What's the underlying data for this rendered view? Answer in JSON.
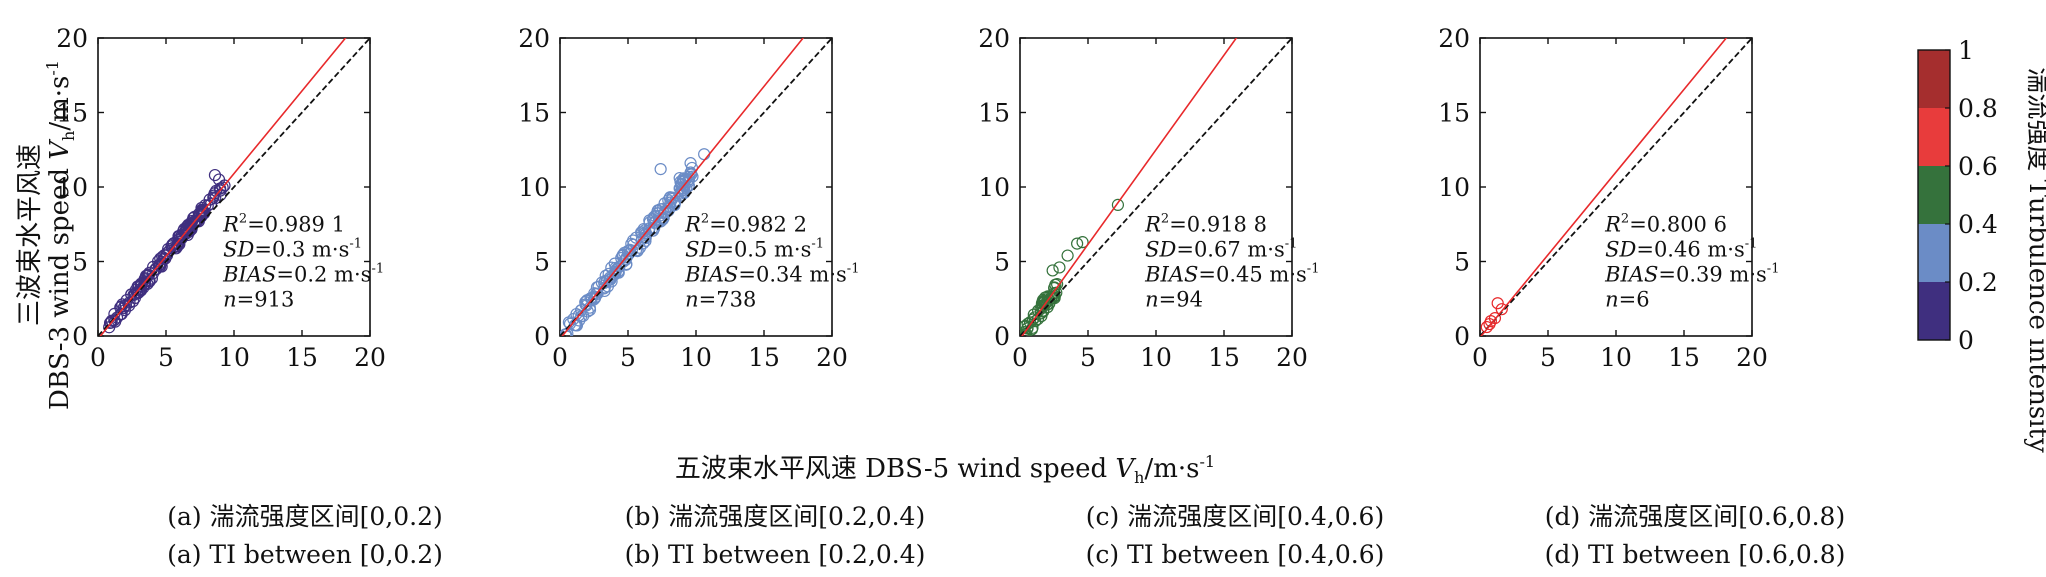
{
  "figure": {
    "ylabel_line1": "三波束水平风速",
    "ylabel_line2_prefix": "DBS-3  wind speed ",
    "ylabel_var": "V",
    "ylabel_sub": "h",
    "ylabel_unit": "/m·s",
    "ylabel_exp": "-1",
    "xlabel_prefix": "五波束水平风速 DBS-5 wind speed ",
    "xlabel_var": "V",
    "xlabel_sub": "h",
    "xlabel_unit": "/m·s",
    "xlabel_exp": "-1"
  },
  "colorbar": {
    "label": "湍流强度 Turbulence intensity",
    "ticks": [
      "0",
      "0.2",
      "0.4",
      "0.6",
      "0.8",
      "1"
    ],
    "colors": [
      "#3f2f7f",
      "#6b8cc6",
      "#35723c",
      "#e83c3c",
      "#a52e2e"
    ]
  },
  "colors": {
    "fit_line": "#e8292b",
    "ref_line": "#111111"
  },
  "chart_data": [
    {
      "type": "scatter",
      "caption_cn": "(a) 湍流强度区间[0,0.2)",
      "caption_en": "(a) TI between [0,0.2)",
      "x_ticks": [
        "0",
        "5",
        "10",
        "15",
        "20"
      ],
      "y_ticks": [
        "0",
        "5",
        "10",
        "15",
        "20"
      ],
      "xlim": [
        0,
        20
      ],
      "ylim": [
        0,
        20
      ],
      "marker_color": "#3f2f7f",
      "fit_slope": 1.11,
      "fit_intercept": -0.2,
      "point_range": [
        0.7,
        9.2
      ],
      "point_spread": 0.35,
      "point_count": 160,
      "extra_points": [
        [
          8.6,
          10.8
        ],
        [
          8.9,
          10.5
        ],
        [
          9.3,
          10.1
        ]
      ],
      "stats": {
        "r2_label": "R",
        "r2_exp": "2",
        "r2_value": "=0.989 1",
        "sd_label": "SD",
        "sd_value": "=0.3 m·s",
        "sd_exp": "-1",
        "bias_label": "BIAS",
        "bias_value": "=0.2 m·s",
        "bias_exp": "-1",
        "n_label": "n",
        "n_value": "=913"
      }
    },
    {
      "type": "scatter",
      "caption_cn": "(b) 湍流强度区间[0.2,0.4)",
      "caption_en": "(b) TI between [0.2,0.4)",
      "x_ticks": [
        "0",
        "5",
        "10",
        "15",
        "20"
      ],
      "y_ticks": [
        "0",
        "5",
        "10",
        "15",
        "20"
      ],
      "xlim": [
        0,
        20
      ],
      "ylim": [
        0,
        20
      ],
      "marker_color": "#6b8cc6",
      "fit_slope": 1.13,
      "fit_intercept": -0.2,
      "point_range": [
        0.3,
        9.8
      ],
      "point_spread": 0.55,
      "point_count": 170,
      "extra_points": [
        [
          7.4,
          11.2
        ],
        [
          9.6,
          11.6
        ],
        [
          10.6,
          12.2
        ],
        [
          8.8,
          10.6
        ]
      ],
      "stats": {
        "r2_label": "R",
        "r2_exp": "2",
        "r2_value": "=0.982 2",
        "sd_label": "SD",
        "sd_value": "=0.5 m·s",
        "sd_exp": "-1",
        "bias_label": "BIAS",
        "bias_value": "=0.34 m·s",
        "bias_exp": "-1",
        "n_label": "n",
        "n_value": "=738"
      }
    },
    {
      "type": "scatter",
      "caption_cn": "(c) 湍流强度区间[0.4,0.6)",
      "caption_en": "(c) TI between [0.4,0.6)",
      "x_ticks": [
        "0",
        "5",
        "10",
        "15",
        "20"
      ],
      "y_ticks": [
        "0",
        "5",
        "10",
        "15",
        "20"
      ],
      "xlim": [
        0,
        20
      ],
      "ylim": [
        0,
        20
      ],
      "marker_color": "#35723c",
      "fit_slope": 1.27,
      "fit_intercept": -0.2,
      "point_range": [
        0.2,
        2.8
      ],
      "point_spread": 0.5,
      "point_count": 55,
      "extra_points": [
        [
          3.5,
          5.4
        ],
        [
          4.2,
          6.2
        ],
        [
          4.6,
          6.3
        ],
        [
          7.2,
          8.8
        ],
        [
          2.4,
          4.4
        ],
        [
          2.9,
          4.6
        ]
      ],
      "stats": {
        "r2_label": "R",
        "r2_exp": "2",
        "r2_value": "=0.918 8",
        "sd_label": "SD",
        "sd_value": "=0.67 m·s",
        "sd_exp": "-1",
        "bias_label": "BIAS",
        "bias_value": "=0.45 m·s",
        "bias_exp": "-1",
        "n_label": "n",
        "n_value": "=94"
      }
    },
    {
      "type": "scatter",
      "caption_cn": "(d) 湍流强度区间[0.6,0.8)",
      "caption_en": "(d) TI between [0.6,0.8)",
      "x_ticks": [
        "0",
        "5",
        "10",
        "15",
        "20"
      ],
      "y_ticks": [
        "0",
        "5",
        "10",
        "15",
        "20"
      ],
      "xlim": [
        0,
        20
      ],
      "ylim": [
        0,
        20
      ],
      "marker_color": "#e8292b",
      "fit_slope": 1.11,
      "fit_intercept": -0.1,
      "point_range": [
        0.4,
        0.4
      ],
      "point_spread": 0,
      "point_count": 0,
      "extra_points": [
        [
          0.5,
          0.6
        ],
        [
          0.8,
          1.0
        ],
        [
          1.1,
          1.2
        ],
        [
          1.3,
          2.2
        ],
        [
          1.6,
          1.8
        ],
        [
          0.7,
          0.8
        ]
      ],
      "stats": {
        "r2_label": "R",
        "r2_exp": "2",
        "r2_value": "=0.800 6",
        "sd_label": "SD",
        "sd_value": "=0.46 m·s",
        "sd_exp": "-1",
        "bias_label": "BIAS",
        "bias_value": "=0.39 m·s",
        "bias_exp": "-1",
        "n_label": "n",
        "n_value": "=6"
      }
    }
  ]
}
